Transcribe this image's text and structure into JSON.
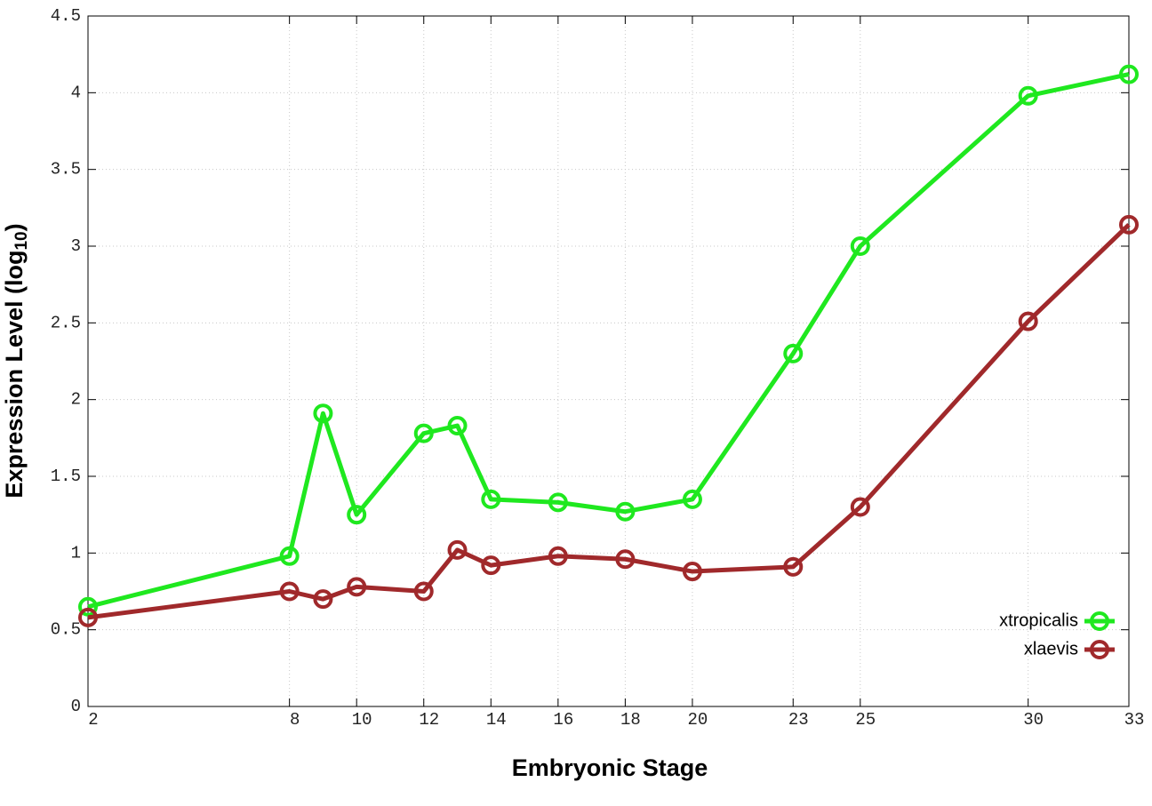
{
  "chart_data": {
    "type": "line",
    "xlabel": "Embryonic Stage",
    "ylabel": [
      "Expression Level (log",
      "10",
      ")"
    ],
    "x": [
      2,
      8,
      9,
      10,
      12,
      13,
      14,
      16,
      18,
      20,
      23,
      25,
      30,
      33
    ],
    "series": [
      {
        "name": "xtropicalis",
        "color": "#1fe81f",
        "values": [
          0.65,
          0.98,
          1.91,
          1.25,
          1.78,
          1.83,
          1.35,
          1.33,
          1.27,
          1.35,
          2.3,
          3.0,
          3.98,
          4.12
        ]
      },
      {
        "name": "xlaevis",
        "color": "#a0292b",
        "values": [
          0.58,
          0.75,
          0.7,
          0.78,
          0.75,
          1.02,
          0.92,
          0.98,
          0.96,
          0.88,
          0.91,
          1.3,
          2.51,
          3.14
        ]
      }
    ],
    "xlim": [
      2,
      33
    ],
    "xticks": [
      2,
      8,
      10,
      12,
      14,
      16,
      18,
      20,
      23,
      25,
      30,
      33
    ],
    "ylim": [
      0,
      4.5
    ],
    "yticks": [
      0,
      0.5,
      1,
      1.5,
      2,
      2.5,
      3,
      3.5,
      4,
      4.5
    ],
    "grid": true,
    "legend": "lower right"
  }
}
